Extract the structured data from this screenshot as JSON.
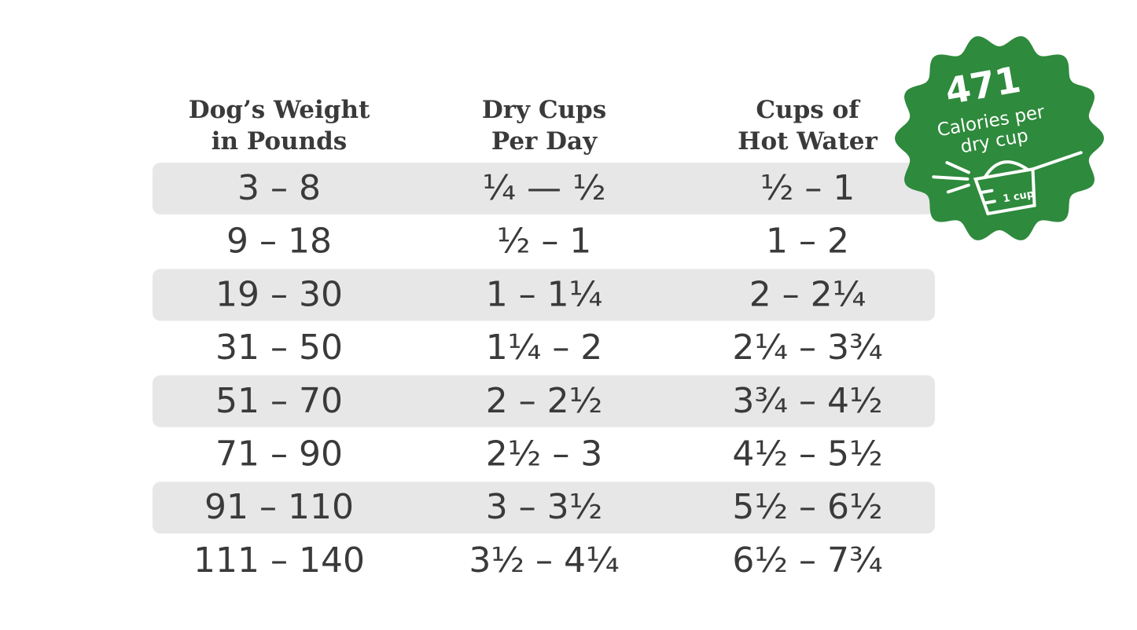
{
  "table": {
    "header": [
      [
        "Dog’s Weight",
        "in Pounds"
      ],
      [
        "Dry Cups",
        "Per Day"
      ],
      [
        "Cups of",
        "Hot Water"
      ]
    ],
    "rows": [
      [
        "3 – 8",
        "¼ — ½",
        "½ – 1"
      ],
      [
        "9 – 18",
        "½ – 1",
        "1 – 2"
      ],
      [
        "19 – 30",
        "1 – 1¼",
        "2 – 2¼"
      ],
      [
        "31 – 50",
        "1¼ – 2",
        "2¼ – 3¾"
      ],
      [
        "51 – 70",
        "2 – 2½",
        "3¾ – 4½"
      ],
      [
        "71 – 90",
        "2½ – 3",
        "4½ – 5½"
      ],
      [
        "91 – 110",
        "3 – 3½",
        "5½ – 6½"
      ],
      [
        "111 – 140",
        "3½ – 4¼",
        "6½ – 7¾"
      ]
    ]
  },
  "badge": {
    "number": "471",
    "text": [
      "Calories per",
      "dry cup"
    ],
    "cup_label": "1 cup"
  }
}
